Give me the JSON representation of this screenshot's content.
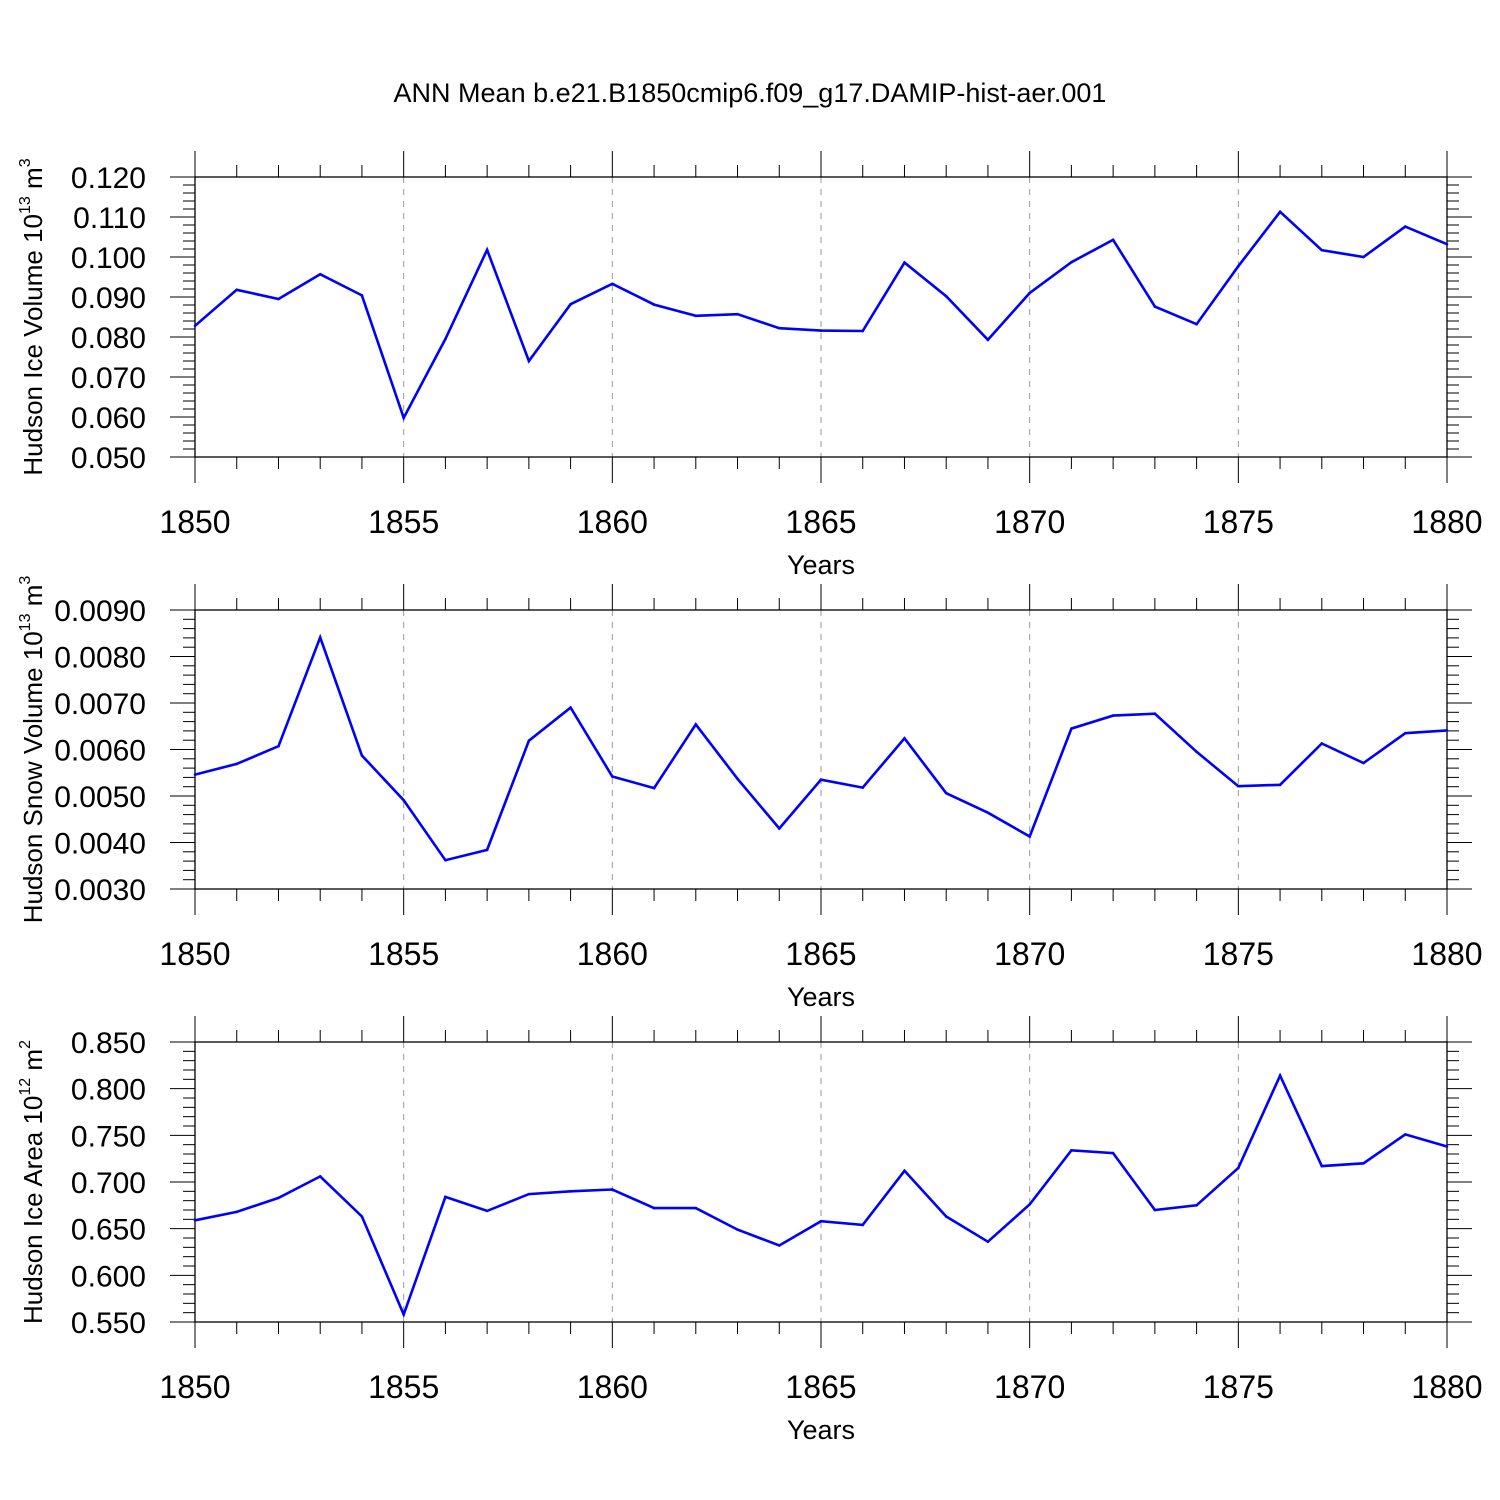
{
  "title": "ANN Mean b.e21.B1850cmip6.f09_g17.DAMIP-hist-aer.001",
  "line_color": "#0000ff",
  "chart_data": [
    {
      "type": "line",
      "xlabel": "Years",
      "ylabel_text": "Hudson Ice Volume 10",
      "ylabel_exp": "13",
      "ylabel_unit": "m",
      "ylabel_unit_exp": "3",
      "ylim": [
        0.05,
        0.12
      ],
      "xlim": [
        1850,
        1880
      ],
      "xticks": [
        "1850",
        "1855",
        "1860",
        "1865",
        "1870",
        "1875",
        "1880"
      ],
      "yticks": [
        "0.050",
        "0.060",
        "0.070",
        "0.080",
        "0.090",
        "0.100",
        "0.110",
        "0.120"
      ],
      "grid": "vertical dashed at major x ticks",
      "x": [
        1850,
        1851,
        1852,
        1853,
        1854,
        1855,
        1856,
        1857,
        1858,
        1859,
        1860,
        1861,
        1862,
        1863,
        1864,
        1865,
        1866,
        1867,
        1868,
        1869,
        1870,
        1871,
        1872,
        1873,
        1874,
        1875,
        1876,
        1877,
        1878,
        1879,
        1880
      ],
      "values": [
        0.0828,
        0.0918,
        0.0895,
        0.0957,
        0.0904,
        0.0598,
        0.0795,
        0.1018,
        0.074,
        0.0882,
        0.0933,
        0.0881,
        0.0853,
        0.0857,
        0.0822,
        0.0816,
        0.0815,
        0.0986,
        0.0902,
        0.0793,
        0.091,
        0.0987,
        0.1043,
        0.0876,
        0.0832,
        0.0977,
        0.1113,
        0.1017,
        0.1,
        0.1076,
        0.1032
      ]
    },
    {
      "type": "line",
      "xlabel": "Years",
      "ylabel_text": "Hudson Snow Volume 10",
      "ylabel_exp": "13",
      "ylabel_unit": "m",
      "ylabel_unit_exp": "3",
      "ylim": [
        0.003,
        0.009
      ],
      "xlim": [
        1850,
        1880
      ],
      "xticks": [
        "1850",
        "1855",
        "1860",
        "1865",
        "1870",
        "1875",
        "1880"
      ],
      "yticks": [
        "0.0030",
        "0.0040",
        "0.0050",
        "0.0060",
        "0.0070",
        "0.0080",
        "0.0090"
      ],
      "grid": "vertical dashed at major x ticks",
      "x": [
        1850,
        1851,
        1852,
        1853,
        1854,
        1855,
        1856,
        1857,
        1858,
        1859,
        1860,
        1861,
        1862,
        1863,
        1864,
        1865,
        1866,
        1867,
        1868,
        1869,
        1870,
        1871,
        1872,
        1873,
        1874,
        1875,
        1876,
        1877,
        1878,
        1879,
        1880
      ],
      "values": [
        0.00546,
        0.00569,
        0.00607,
        0.00841,
        0.00587,
        0.00491,
        0.00362,
        0.00384,
        0.00619,
        0.0069,
        0.00542,
        0.00517,
        0.00654,
        0.00537,
        0.0043,
        0.00535,
        0.00518,
        0.00624,
        0.00506,
        0.00464,
        0.00413,
        0.00645,
        0.00673,
        0.00677,
        0.00595,
        0.00521,
        0.00524,
        0.00613,
        0.00571,
        0.00635,
        0.00641
      ]
    },
    {
      "type": "line",
      "xlabel": "Years",
      "ylabel_text": "Hudson Ice Area 10",
      "ylabel_exp": "12",
      "ylabel_unit": "m",
      "ylabel_unit_exp": "2",
      "ylim": [
        0.55,
        0.85
      ],
      "xlim": [
        1850,
        1880
      ],
      "xticks": [
        "1850",
        "1855",
        "1860",
        "1865",
        "1870",
        "1875",
        "1880"
      ],
      "yticks": [
        "0.550",
        "0.600",
        "0.650",
        "0.700",
        "0.750",
        "0.800",
        "0.850"
      ],
      "grid": "vertical dashed at major x ticks",
      "x": [
        1850,
        1851,
        1852,
        1853,
        1854,
        1855,
        1856,
        1857,
        1858,
        1859,
        1860,
        1861,
        1862,
        1863,
        1864,
        1865,
        1866,
        1867,
        1868,
        1869,
        1870,
        1871,
        1872,
        1873,
        1874,
        1875,
        1876,
        1877,
        1878,
        1879,
        1880
      ],
      "values": [
        0.659,
        0.668,
        0.683,
        0.706,
        0.663,
        0.558,
        0.684,
        0.669,
        0.687,
        0.69,
        0.692,
        0.672,
        0.672,
        0.649,
        0.632,
        0.658,
        0.654,
        0.712,
        0.663,
        0.636,
        0.676,
        0.734,
        0.731,
        0.67,
        0.675,
        0.715,
        0.814,
        0.717,
        0.72,
        0.751,
        0.738
      ]
    }
  ]
}
